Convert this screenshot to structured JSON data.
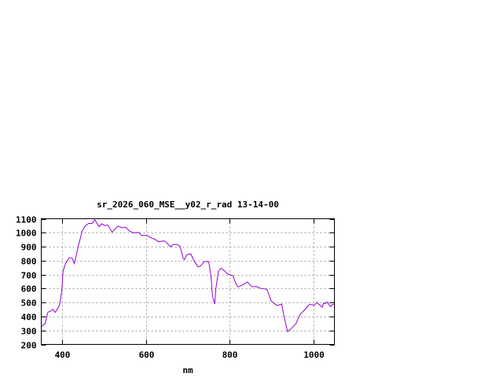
{
  "chart_data": {
    "type": "line",
    "title": "sr_2026_060_MSE__y02_r_rad 13-14-00",
    "xlabel": "nm",
    "ylabel": "",
    "xlim": [
      350,
      1050
    ],
    "ylim": [
      200,
      1100
    ],
    "xticks": [
      400,
      600,
      800,
      1000
    ],
    "yticks": [
      200,
      300,
      400,
      500,
      600,
      700,
      800,
      900,
      1000,
      1100
    ],
    "grid": true,
    "line_color": "#9400d3",
    "series": [
      {
        "x": [
          350,
          359,
          366,
          371,
          378,
          383,
          389,
          394,
          399,
          402,
          408,
          417,
          424,
          429,
          439,
          448,
          455,
          463,
          471,
          478,
          488,
          494,
          502,
          509,
          519,
          533,
          543,
          552,
          561,
          571,
          583,
          589,
          602,
          614,
          621,
          630,
          643,
          649,
          659,
          665,
          674,
          681,
          689,
          692,
          697,
          707,
          715,
          724,
          730,
          739,
          750,
          755,
          759,
          764,
          767,
          773,
          779,
          789,
          795,
          808,
          814,
          820,
          833,
          842,
          852,
          864,
          874,
          889,
          899,
          908,
          914,
          924,
          930,
          938,
          946,
          958,
          968,
          977,
          990,
          996,
          1001,
          1008,
          1016,
          1021,
          1024,
          1028,
          1032,
          1036,
          1041,
          1045,
          1050
        ],
        "y": [
          329,
          348,
          432,
          436,
          451,
          429,
          455,
          485,
          582,
          723,
          779,
          822,
          817,
          779,
          911,
          1014,
          1048,
          1066,
          1066,
          1092,
          1042,
          1064,
          1051,
          1055,
          1004,
          1047,
          1036,
          1038,
          1010,
          999,
          1002,
          980,
          980,
          961,
          954,
          935,
          942,
          929,
          898,
          916,
          916,
          905,
          817,
          807,
          841,
          849,
          798,
          755,
          761,
          793,
          793,
          695,
          545,
          489,
          601,
          723,
          746,
          723,
          704,
          691,
          639,
          611,
          629,
          648,
          614,
          614,
          601,
          595,
          511,
          489,
          479,
          489,
          395,
          292,
          311,
          348,
          414,
          442,
          485,
          485,
          479,
          500,
          479,
          466,
          496,
          492,
          504,
          489,
          470,
          485,
          485
        ]
      }
    ]
  }
}
